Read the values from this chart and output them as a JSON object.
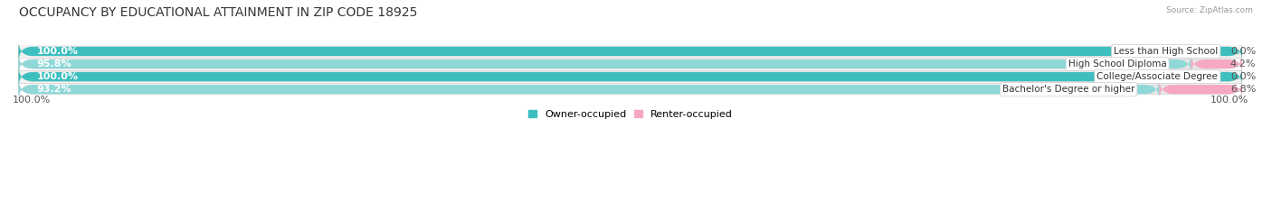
{
  "title": "OCCUPANCY BY EDUCATIONAL ATTAINMENT IN ZIP CODE 18925",
  "source": "Source: ZipAtlas.com",
  "categories": [
    "Less than High School",
    "High School Diploma",
    "College/Associate Degree",
    "Bachelor's Degree or higher"
  ],
  "owner_pct": [
    100.0,
    95.8,
    100.0,
    93.2
  ],
  "renter_pct": [
    0.0,
    4.2,
    0.0,
    6.8
  ],
  "owner_color": "#3DBFBF",
  "owner_color_light": "#8ED8D8",
  "renter_color": "#F0709A",
  "renter_color_light": "#F5A8C0",
  "bg_color": "#ffffff",
  "row_bg_even": "#f2f2f2",
  "row_bg_odd": "#ffffff",
  "title_fontsize": 10,
  "label_fontsize": 8,
  "tick_fontsize": 8,
  "bar_height": 0.72,
  "figsize": [
    14.06,
    2.33
  ]
}
